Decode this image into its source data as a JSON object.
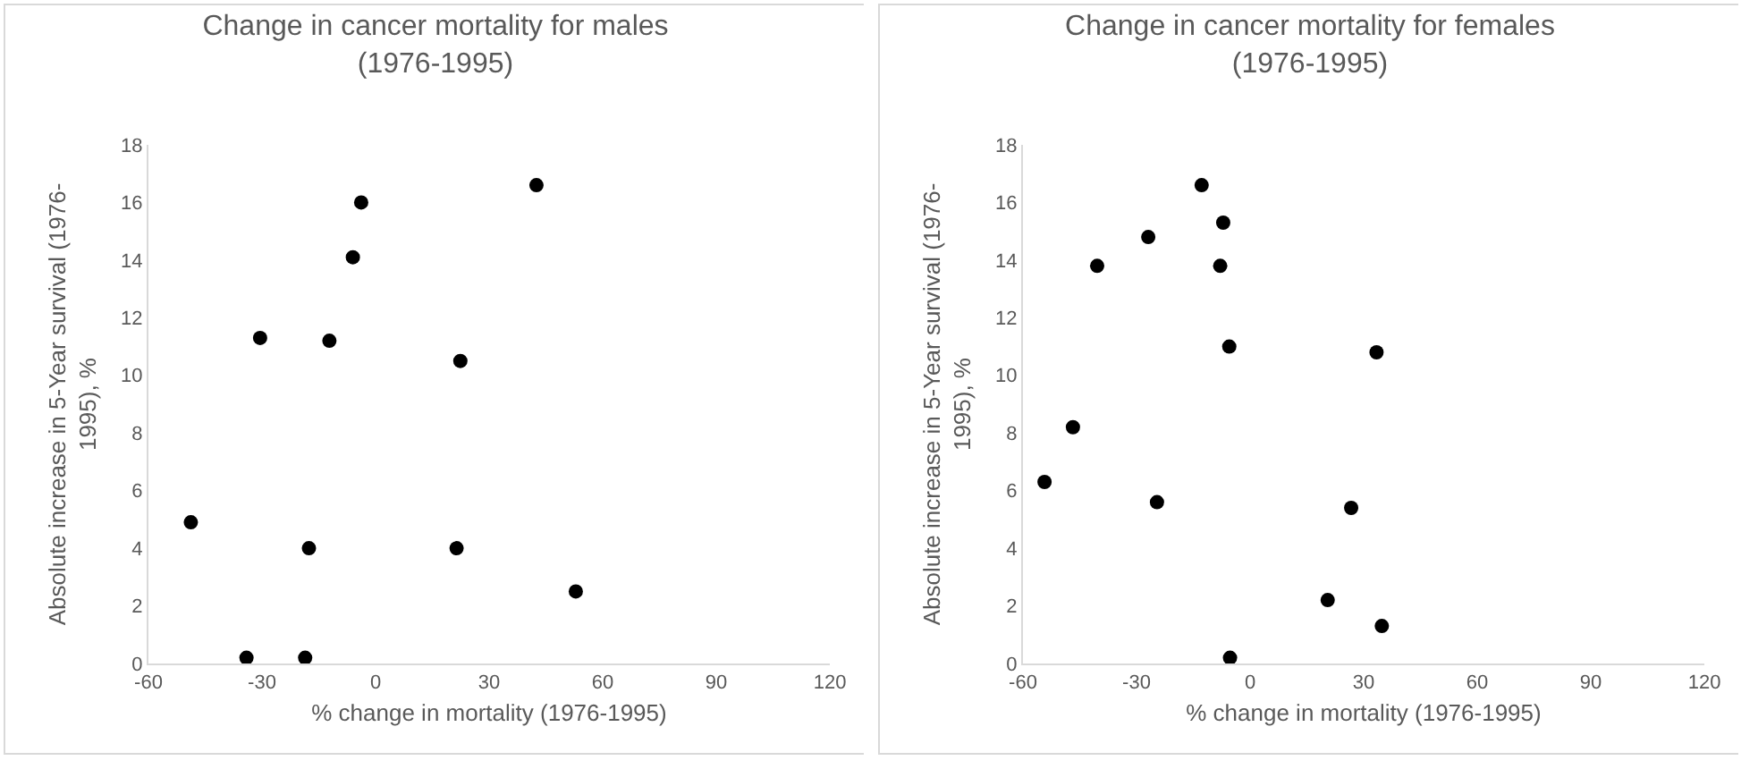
{
  "chart_data": [
    {
      "type": "scatter",
      "title": "Change in cancer mortality for males\n(1976-1995)",
      "xlabel": "% change in mortality (1976-1995)",
      "ylabel": "Absolute increase in 5-Year survival (1976-\n1995), %",
      "x": [
        42.5,
        -3.8,
        -6,
        -30.5,
        -12.2,
        22.4,
        -48.8,
        -17.6,
        21.4,
        52.9,
        -34.1,
        -18.6
      ],
      "series": [
        {
          "color": "#000000",
          "values": [
            16.6,
            16.0,
            14.1,
            11.3,
            11.2,
            10.5,
            4.9,
            4.0,
            4.0,
            2.5,
            0.2,
            0.2
          ]
        }
      ],
      "xlim": [
        -60,
        120
      ],
      "xticks": [
        -60,
        -30,
        0,
        30,
        60,
        90,
        120
      ],
      "ylim": [
        0,
        18
      ],
      "yticks": [
        0,
        2,
        4,
        6,
        8,
        10,
        12,
        14,
        16,
        18
      ],
      "marker": "circle"
    },
    {
      "type": "scatter",
      "title": "Change in cancer mortality for females\n(1976-1995)",
      "xlabel": "% change in mortality (1976-1995)",
      "ylabel": "Absolute increase in 5-Year survival (1976-\n1995), %",
      "x": [
        -12.8,
        -7.1,
        -26.9,
        -40.4,
        -7.9,
        -5.5,
        33.4,
        -46.8,
        -54.3,
        -24.6,
        26.7,
        20.5,
        34.8,
        -5.3
      ],
      "series": [
        {
          "color": "#000000",
          "values": [
            16.6,
            15.3,
            14.8,
            13.8,
            13.8,
            11.0,
            10.8,
            8.2,
            6.3,
            5.6,
            5.4,
            2.2,
            1.3,
            0.2
          ]
        }
      ],
      "xlim": [
        -60,
        120
      ],
      "xticks": [
        -60,
        -30,
        0,
        30,
        60,
        90,
        120
      ],
      "ylim": [
        0,
        18
      ],
      "yticks": [
        0,
        2,
        4,
        6,
        8,
        10,
        12,
        14,
        16,
        18
      ],
      "marker": "circle"
    }
  ]
}
